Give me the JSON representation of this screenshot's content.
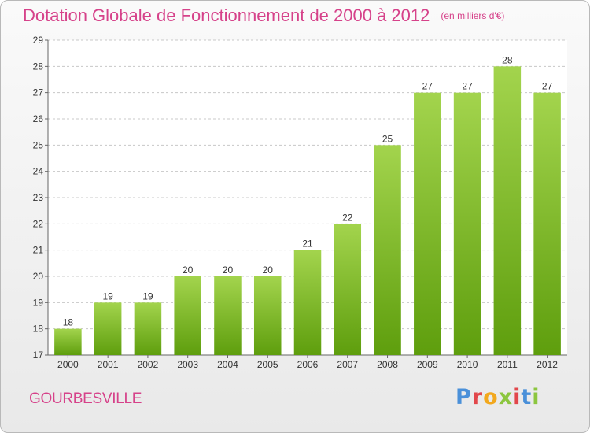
{
  "header": {
    "title": "Dotation Globale de Fonctionnement de 2000 à 2012",
    "subtitle": "(en milliers d'€)"
  },
  "footer": {
    "commune": "GOURBESVILLE",
    "logo_text": "Proxiti"
  },
  "colors": {
    "title": "#d6428a",
    "bar_light": "#a3d44d",
    "bar_dark": "#5e9e0d",
    "grid": "#c8c8c8"
  },
  "chart_data": {
    "type": "bar",
    "title": "Dotation Globale de Fonctionnement de 2000 à 2012",
    "subtitle": "(en milliers d'€)",
    "xlabel": "",
    "ylabel": "",
    "categories": [
      "2000",
      "2001",
      "2002",
      "2003",
      "2004",
      "2005",
      "2006",
      "2007",
      "2008",
      "2009",
      "2010",
      "2011",
      "2012"
    ],
    "values": [
      18,
      19,
      19,
      20,
      20,
      20,
      21,
      22,
      25,
      27,
      27,
      28,
      27
    ],
    "ylim": [
      17,
      29
    ],
    "yticks": [
      17,
      18,
      19,
      20,
      21,
      22,
      23,
      24,
      25,
      26,
      27,
      28,
      29
    ],
    "grid": "horizontal dashed",
    "data_labels": true,
    "legend": "none"
  }
}
